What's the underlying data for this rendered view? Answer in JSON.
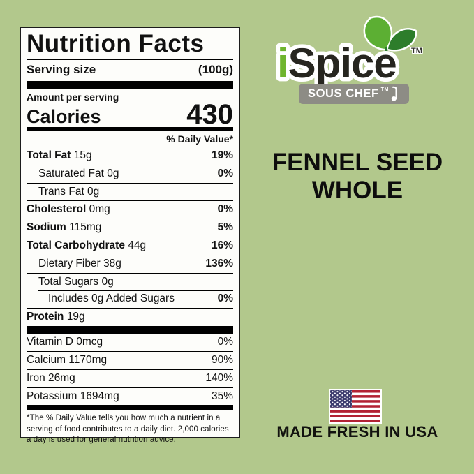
{
  "colors": {
    "background": "#b2c88c",
    "label_background": "#fdfdfa",
    "label_text": "#000000",
    "logo_green": "#6fb52e",
    "logo_dark": "#26251f",
    "leaf_light": "#5caf33",
    "leaf_dark": "#2d7d2b",
    "banner_gray": "#8d8c85",
    "flag_red": "#b22234",
    "flag_blue": "#3c3b6e",
    "flag_white": "#ffffff"
  },
  "nutrition_label": {
    "title": "Nutrition Facts",
    "serving_size_label": "Serving size",
    "serving_size_value": "(100g)",
    "amount_per_serving_label": "Amount per serving",
    "calories_label": "Calories",
    "calories_value": "430",
    "daily_value_header": "% Daily Value*",
    "nutrient_rows": [
      {
        "name": "Total Fat",
        "amount": "15g",
        "dv": "19%",
        "bold": true,
        "indent": 0
      },
      {
        "name": "Saturated Fat",
        "amount": "0g",
        "dv": "0%",
        "bold": false,
        "indent": 1
      },
      {
        "name": "Trans Fat",
        "amount": "0g",
        "dv": "",
        "bold": false,
        "indent": 1
      },
      {
        "name": "Cholesterol",
        "amount": "0mg",
        "dv": "0%",
        "bold": true,
        "indent": 0
      },
      {
        "name": "Sodium",
        "amount": "115mg",
        "dv": "5%",
        "bold": true,
        "indent": 0
      },
      {
        "name": "Total Carbohydrate",
        "amount": "44g",
        "dv": "16%",
        "bold": true,
        "indent": 0
      },
      {
        "name": "Dietary Fiber",
        "amount": "38g",
        "dv": "136%",
        "bold": false,
        "indent": 1
      },
      {
        "name": "Total Sugars",
        "amount": "0g",
        "dv": "",
        "bold": false,
        "indent": 1
      },
      {
        "name": "Includes 0g Added Sugars",
        "amount": "",
        "dv": "0%",
        "bold": false,
        "indent": 2,
        "sep_indent": true
      },
      {
        "name": "Protein",
        "amount": "19g",
        "dv": "",
        "bold": true,
        "indent": 0
      }
    ],
    "vitamin_rows": [
      {
        "name": "Vitamin D",
        "amount": "0mcg",
        "dv": "0%"
      },
      {
        "name": "Calcium",
        "amount": "1170mg",
        "dv": "90%"
      },
      {
        "name": "Iron",
        "amount": "26mg",
        "dv": "140%"
      },
      {
        "name": "Potassium",
        "amount": "1694mg",
        "dv": "35%"
      }
    ],
    "footnote": "*The % Daily Value tells you how much a nutrient in a serving of food contributes to a daily diet. 2,000 calories a day is used for general nutrition advice."
  },
  "brand": {
    "logo_i": "i",
    "logo_rest": "Spice",
    "logo_trademark": "TM",
    "banner_text": "SOUS CHEF",
    "banner_trademark": "TM"
  },
  "product": {
    "title_line1": "FENNEL SEED",
    "title_line2": "WHOLE"
  },
  "origin": {
    "text": "MADE FRESH IN USA"
  }
}
